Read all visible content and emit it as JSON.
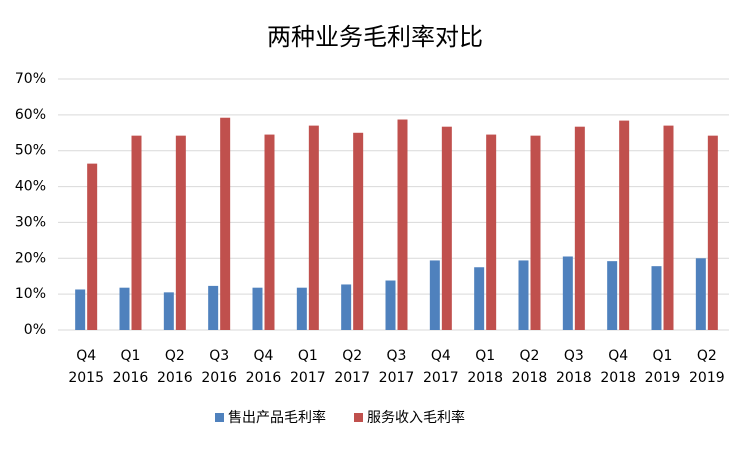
{
  "chart_data": {
    "type": "bar",
    "title": "两种业务毛利率对比",
    "categories": [
      [
        "Q4",
        "2015"
      ],
      [
        "Q1",
        "2016"
      ],
      [
        "Q2",
        "2016"
      ],
      [
        "Q3",
        "2016"
      ],
      [
        "Q4",
        "2016"
      ],
      [
        "Q1",
        "2017"
      ],
      [
        "Q2",
        "2017"
      ],
      [
        "Q3",
        "2017"
      ],
      [
        "Q4",
        "2017"
      ],
      [
        "Q1",
        "2018"
      ],
      [
        "Q2",
        "2018"
      ],
      [
        "Q3",
        "2018"
      ],
      [
        "Q4",
        "2018"
      ],
      [
        "Q1",
        "2019"
      ],
      [
        "Q2",
        "2019"
      ]
    ],
    "series": [
      {
        "name": "售出产品毛利率",
        "color": "#4f81bd",
        "values": [
          11.3,
          11.8,
          10.5,
          12.3,
          11.8,
          11.8,
          12.7,
          13.8,
          19.4,
          17.5,
          19.4,
          20.5,
          19.2,
          17.8,
          20.0
        ]
      },
      {
        "name": "服务收入毛利率",
        "color": "#c0504d",
        "values": [
          46.4,
          54.2,
          54.2,
          59.2,
          54.5,
          57.0,
          55.0,
          58.7,
          56.7,
          54.5,
          54.2,
          56.7,
          58.4,
          57.0,
          54.2
        ]
      }
    ],
    "ylim": [
      0,
      70
    ],
    "yticks": [
      {
        "value": 0,
        "label": "0%"
      },
      {
        "value": 10,
        "label": "10%"
      },
      {
        "value": 20,
        "label": "20%"
      },
      {
        "value": 30,
        "label": "30%"
      },
      {
        "value": 40,
        "label": "40%"
      },
      {
        "value": 50,
        "label": "50%"
      },
      {
        "value": 60,
        "label": "60%"
      },
      {
        "value": 70,
        "label": "70%"
      }
    ],
    "grid": true,
    "legend": "bottom"
  }
}
